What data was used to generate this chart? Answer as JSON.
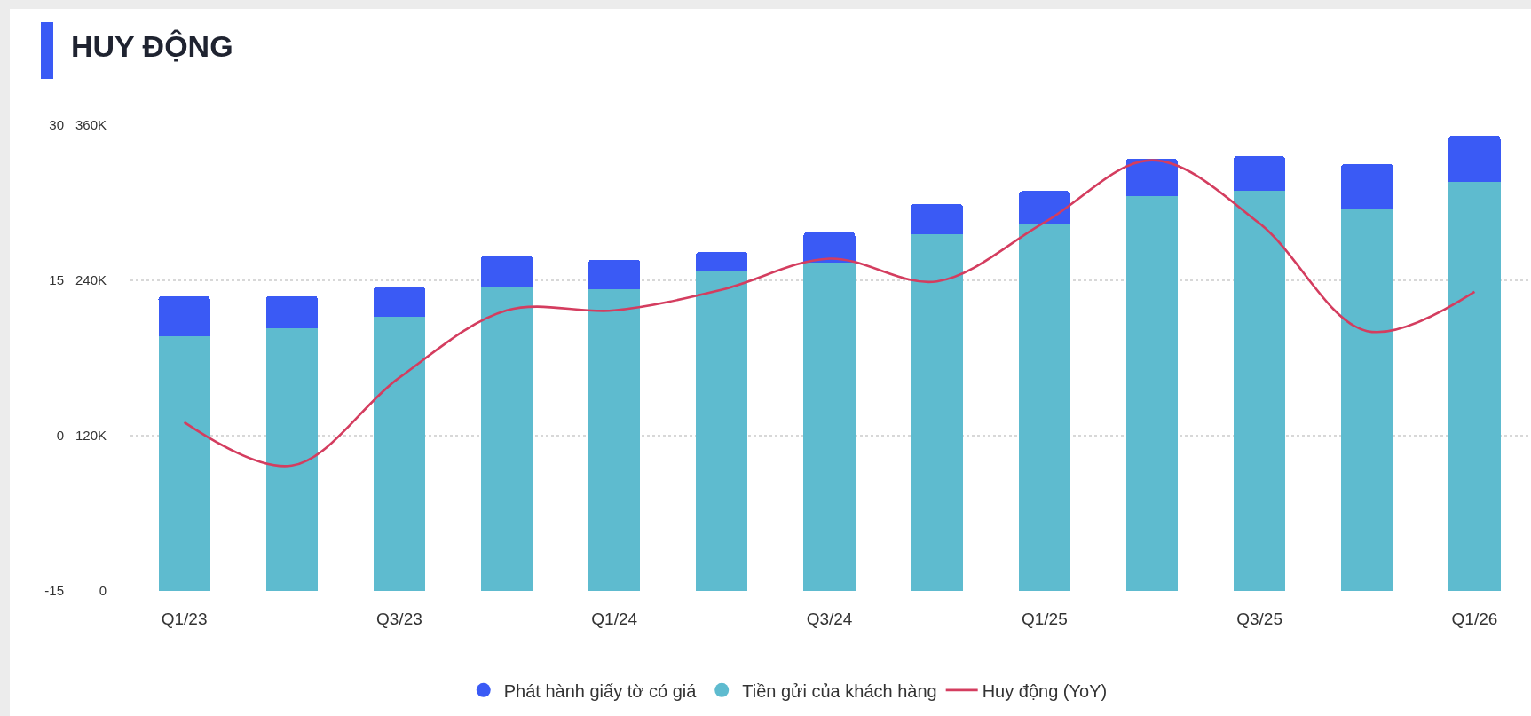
{
  "chart_data": {
    "type": "bar",
    "title": "HUY ĐỘNG",
    "categories": [
      "Q1/23",
      null,
      "Q3/23",
      null,
      "Q1/24",
      null,
      "Q3/24",
      null,
      "Q1/25",
      null,
      "Q3/25",
      null,
      "Q1/26"
    ],
    "stacked": true,
    "series": [
      {
        "name": "Tiền gửi của khách hàng",
        "color": "#5ebbcf",
        "values": [
          197,
          203,
          212,
          235,
          233,
          247,
          254,
          276,
          283,
          305,
          309,
          295,
          316
        ]
      },
      {
        "name": "Phát hành giấy tờ có giá",
        "color": "#3a5af5",
        "values": [
          31,
          25,
          23,
          24,
          23,
          15,
          23,
          23,
          26,
          29,
          27,
          35,
          36
        ]
      },
      {
        "type": "line",
        "name": "Huy động (YoY)",
        "color": "#d43d5f",
        "axis": "y2",
        "values": [
          1.3,
          -2.9,
          5.6,
          12.1,
          12.1,
          14.1,
          17.1,
          14.9,
          20.6,
          26.6,
          20.5,
          10.1,
          13.9
        ]
      }
    ],
    "ylim": [
      0,
      360
    ],
    "yticks": [
      0,
      {
        "value": 120,
        "label": "120K"
      },
      {
        "value": 240,
        "label": "240K"
      },
      {
        "value": 360,
        "label": "360K"
      }
    ],
    "y2lim": [
      -15,
      30
    ],
    "y2ticks": [
      -15,
      0,
      15,
      30
    ],
    "grid": "y",
    "legend": "bottom",
    "line_style": "solid"
  }
}
